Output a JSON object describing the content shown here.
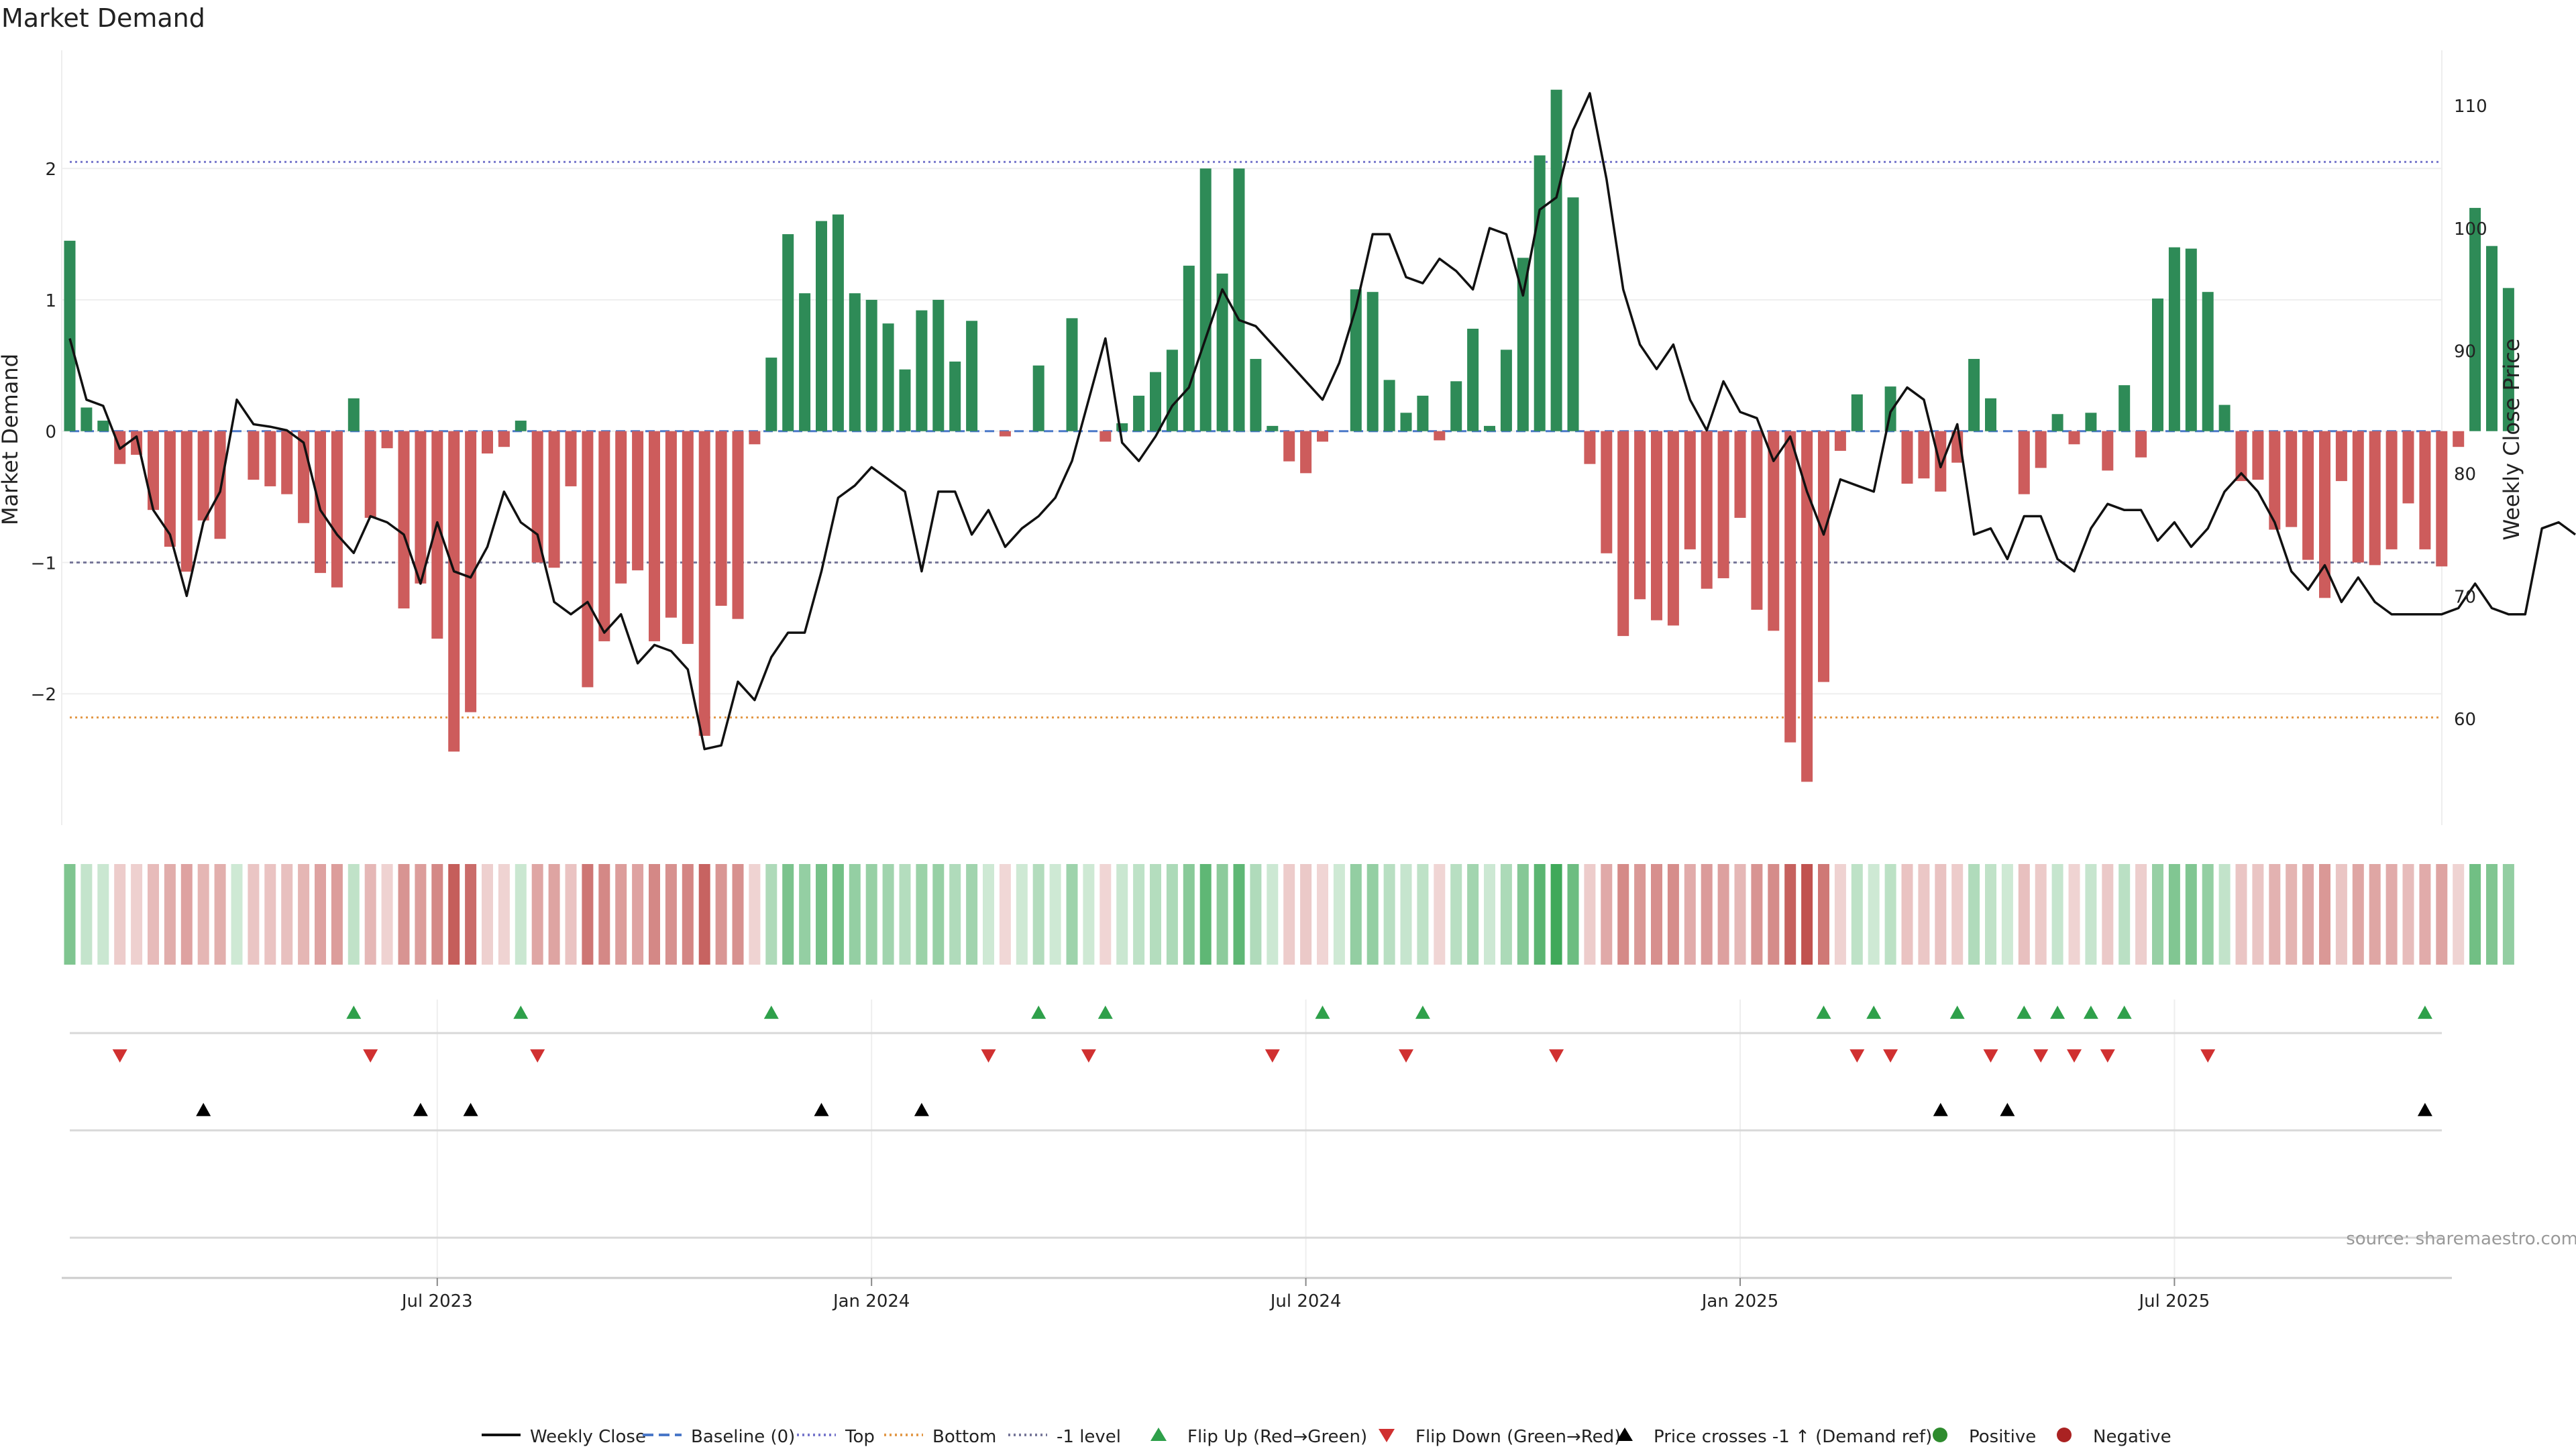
{
  "chart_data": {
    "type": "bar",
    "title": "Market Demand",
    "ylabel": "Market Demand",
    "y2label": "Weekly Close Price",
    "ylim": [
      -3.0,
      2.9
    ],
    "y2lim": [
      51.3,
      114.5
    ],
    "yticks": [
      -2,
      -1,
      0,
      1,
      2
    ],
    "y2ticks": [
      60,
      70,
      80,
      90,
      100,
      110
    ],
    "xticks": [
      {
        "label": "Jul 2023",
        "week": 22
      },
      {
        "label": "Jan 2024",
        "week": 48
      },
      {
        "label": "Jul 2024",
        "week": 74
      },
      {
        "label": "Jan 2025",
        "week": 100
      },
      {
        "label": "Jul 2025",
        "week": 126
      }
    ],
    "reference_lines": {
      "top": 2.05,
      "bottom": -2.18,
      "minus_one": -1.0,
      "baseline": 0
    },
    "series": [
      {
        "name": "Market Demand",
        "values": [
          1.45,
          0.18,
          0.08,
          -0.25,
          -0.18,
          -0.6,
          -0.88,
          -1.07,
          -0.68,
          -0.82,
          0,
          -0.37,
          -0.42,
          -0.48,
          -0.7,
          -1.08,
          -1.19,
          0.25,
          -0.66,
          -0.13,
          -1.35,
          -1.16,
          -1.58,
          -2.44,
          -2.14,
          -0.17,
          -0.12,
          0.08,
          -1.0,
          -1.04,
          -0.42,
          -1.95,
          -1.6,
          -1.16,
          -1.06,
          -1.6,
          -1.42,
          -1.62,
          -2.32,
          -1.33,
          -1.43,
          -0.1,
          0.56,
          1.5,
          1.05,
          1.6,
          1.65,
          1.05,
          1.0,
          0.82,
          0.47,
          0.92,
          1.0,
          0.53,
          0.84,
          0,
          -0.04,
          0,
          0.5,
          0,
          0.86,
          0,
          -0.08,
          0.06,
          0.27,
          0.45,
          0.62,
          1.26,
          2.0,
          1.2,
          2.0,
          0.55,
          0.04,
          -0.23,
          -0.32,
          -0.08,
          0,
          1.08,
          1.06,
          0.39,
          0.14,
          0.27,
          -0.07,
          0.38,
          0.78,
          0.04,
          0.62,
          1.32,
          2.1,
          2.6,
          1.78,
          -0.25,
          -0.93,
          -1.56,
          -1.28,
          -1.44,
          -1.48,
          -0.9,
          -1.2,
          -1.12,
          -0.66,
          -1.36,
          -1.52,
          -2.37,
          -2.67,
          -1.91,
          -0.15,
          0.28,
          0,
          0.34,
          -0.4,
          -0.36,
          -0.46,
          -0.24,
          0.55,
          0.25,
          0,
          -0.48,
          -0.28,
          0.13,
          -0.1,
          0.14,
          -0.3,
          0.35,
          -0.2,
          1.01,
          1.4,
          1.39,
          1.06,
          0.2,
          -0.38,
          -0.37,
          -0.75,
          -0.73,
          -0.98,
          -1.27,
          -0.38,
          -1.0,
          -1.02,
          -0.9,
          -0.55,
          -0.9,
          -1.03,
          -0.12,
          1.7,
          1.41,
          1.09
        ]
      },
      {
        "name": "Weekly Close",
        "values": [
          91,
          86,
          85.5,
          82,
          83,
          77,
          75,
          70,
          76,
          78.5,
          86,
          84,
          83.8,
          83.5,
          82.5,
          77,
          75,
          73.5,
          76.5,
          76,
          75,
          71,
          76,
          72,
          71.5,
          74,
          78.5,
          76,
          75,
          69.5,
          68.5,
          69.5,
          67,
          68.5,
          64.5,
          66,
          65.5,
          64,
          57.5,
          57.8,
          63,
          61.5,
          65,
          67,
          67,
          72,
          78,
          79,
          80.5,
          79.5,
          78.5,
          72,
          78.5,
          78.5,
          75,
          77,
          74,
          75.5,
          76.5,
          78,
          81,
          86,
          91,
          82.5,
          81,
          83,
          85.5,
          87,
          91,
          95,
          92.5,
          92,
          90.5,
          89,
          87.5,
          86,
          89,
          93.5,
          99.5,
          99.5,
          96,
          95.5,
          97.5,
          96.5,
          95,
          100,
          99.5,
          94.5,
          101.5,
          102.5,
          108,
          111,
          104,
          95,
          90.5,
          88.5,
          90.5,
          86,
          83.5,
          87.5,
          85,
          84.5,
          81,
          83,
          78.5,
          75,
          79.5,
          79,
          78.5,
          85,
          87,
          86,
          80.5,
          84,
          75,
          75.5,
          73,
          76.5,
          76.5,
          73,
          72,
          75.5,
          77.5,
          77,
          77,
          74.5,
          76,
          74,
          75.5,
          78.5,
          80,
          78.5,
          76,
          72,
          70.5,
          72.5,
          69.5,
          71.5,
          69.5,
          68.5,
          68.5,
          68.5,
          68.5,
          69,
          71,
          69,
          68.5,
          68.5,
          75.5,
          76,
          75
        ]
      }
    ],
    "flip_up_weeks": [
      17,
      27,
      42,
      58,
      62,
      75,
      81,
      105,
      108,
      113,
      117,
      119,
      121,
      123,
      141
    ],
    "flip_down_weeks": [
      3,
      18,
      28,
      55,
      61,
      72,
      80,
      89,
      107,
      109,
      115,
      118,
      120,
      122,
      128
    ],
    "price_cross_weeks": [
      8,
      21,
      24,
      45,
      51,
      112,
      116,
      141
    ],
    "legend": [
      {
        "label": "Weekly Close",
        "marker": "line-solid",
        "color": "#111111"
      },
      {
        "label": "Baseline (0)",
        "marker": "line-dashed",
        "color": "#4a78c8"
      },
      {
        "label": "Top",
        "marker": "line-dotted",
        "color": "#7777cc"
      },
      {
        "label": "Bottom",
        "marker": "line-dotted",
        "color": "#e39a4a"
      },
      {
        "label": "-1 level",
        "marker": "line-dotted",
        "color": "#777799"
      },
      {
        "label": "Flip Up (Red→Green)",
        "marker": "triangle-up",
        "color": "#2ea04a"
      },
      {
        "label": "Flip Down (Green→Red)",
        "marker": "triangle-down",
        "color": "#d03030"
      },
      {
        "label": "Price crosses -1 ↑ (Demand ref)",
        "marker": "triangle-up",
        "color": "#000000"
      },
      {
        "label": "Positive",
        "marker": "circle",
        "color": "#2e8b2e"
      },
      {
        "label": "Negative",
        "marker": "circle",
        "color": "#aa2222"
      }
    ],
    "source": "source: sharemaestro.com",
    "colors": {
      "positive": "#2e8b57",
      "negative": "#cd5c5c",
      "price": "#111111",
      "flip_up": "#2ea04a",
      "flip_down": "#d03030",
      "cross": "#000000"
    }
  }
}
